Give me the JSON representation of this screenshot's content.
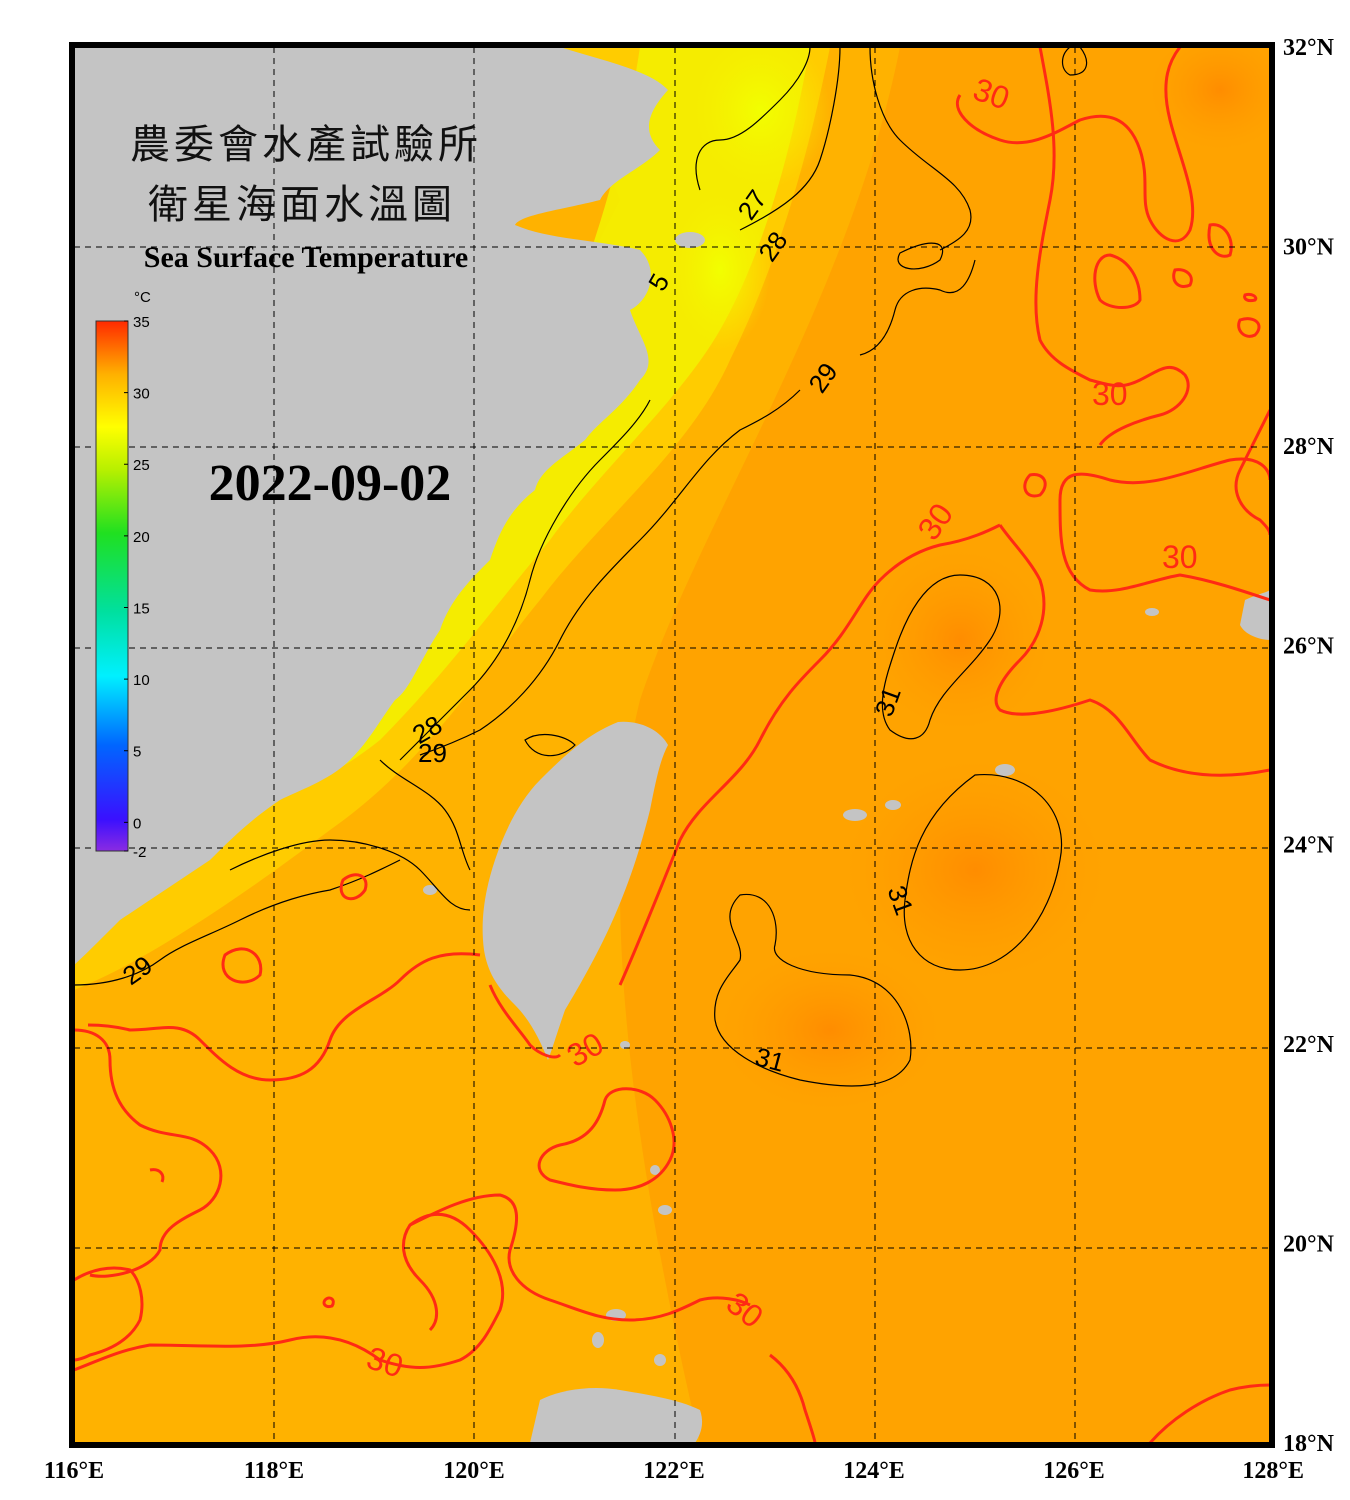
{
  "title": {
    "line1": "農委會水產試驗所",
    "line2": "衛星海面水溫圖",
    "english": "Sea Surface Temperature"
  },
  "date": "2022-09-02",
  "colorbar": {
    "unit": "°C",
    "min": -2,
    "max": 35,
    "ticks": [
      "35",
      "30",
      "25",
      "20",
      "15",
      "10",
      "5",
      "0",
      "-2"
    ]
  },
  "axes": {
    "lon_labels": [
      "116°E",
      "118°E",
      "120°E",
      "122°E",
      "124°E",
      "126°E",
      "128°E"
    ],
    "lat_labels": [
      "32°N",
      "30°N",
      "28°N",
      "26°N",
      "24°N",
      "22°N",
      "20°N",
      "18°N"
    ]
  },
  "contour_labels": {
    "red": [
      "30",
      "30",
      "30",
      "30",
      "30",
      "30",
      "30"
    ],
    "black": [
      "27",
      "28",
      "29",
      "31",
      "31",
      "31",
      "28",
      "29",
      "29",
      "5"
    ]
  },
  "colors": {
    "land": "#c4c4c4",
    "warm_contour": "#ff2a14",
    "frame": "#000000"
  }
}
